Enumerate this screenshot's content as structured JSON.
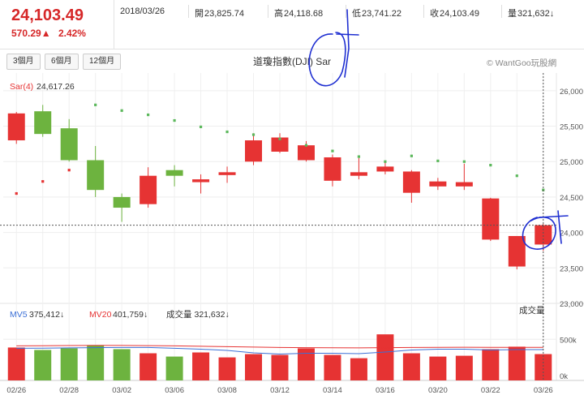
{
  "quote": {
    "price": "24,103.49",
    "change": "570.29",
    "change_arrow": "▲",
    "change_pct": "2.42%",
    "date": "2018/03/26",
    "open_label": "開",
    "open": "23,825.74",
    "high_label": "高",
    "high": "24,118.68",
    "low_label": "低",
    "low": "23,741.22",
    "close_label": "收",
    "close": "24,103.49",
    "volume_label": "量",
    "volume": "321,632",
    "volume_arrow": "↓"
  },
  "range_buttons": [
    "3個月",
    "6個月",
    "12個月"
  ],
  "title": "道瓊指數(DJI) Sar",
  "watermark": "© WantGoo玩股網",
  "sar_legend": {
    "label": "Sar(4)",
    "value": "24,617.26"
  },
  "volume_legend": {
    "mv5_label": "MV5",
    "mv5_value": "375,412",
    "mv5_arrow": "↓",
    "mv20_label": "MV20",
    "mv20_value": "401,759",
    "mv20_arrow": "↓",
    "vol_label": "成交量",
    "vol_value": "321,632",
    "vol_arrow": "↓"
  },
  "volume_axis_title": "成交量",
  "colors": {
    "up": "#e63333",
    "down": "#6db33f",
    "sar_up": "#e63333",
    "sar_down": "#5cb85c",
    "mv5": "#3b6fd6",
    "mv20": "#e63333",
    "annotation": "#1f2fd1"
  },
  "chart_data": [
    {
      "type": "candlestick",
      "title": "道瓊指數(DJI) Sar",
      "ylim": [
        23000,
        26250
      ],
      "yticks": [
        23000,
        23500,
        24000,
        24500,
        25000,
        25500,
        26000
      ],
      "ytick_labels": [
        "23,000",
        "23,500",
        "24,000",
        "24,500",
        "25,000",
        "25,500",
        "26,000"
      ],
      "last_close": 24103,
      "candles": [
        {
          "o": 25300,
          "h": 25700,
          "l": 25250,
          "c": 25680,
          "sar": 24550
        },
        {
          "o": 25710,
          "h": 25800,
          "l": 25350,
          "c": 25390,
          "sar": 24720
        },
        {
          "o": 25470,
          "h": 25600,
          "l": 25000,
          "c": 25020,
          "sar": 24880
        },
        {
          "o": 25020,
          "h": 25220,
          "l": 24500,
          "c": 24600,
          "sar": 25800
        },
        {
          "o": 24500,
          "h": 24550,
          "l": 24150,
          "c": 24350,
          "sar": 25720
        },
        {
          "o": 24400,
          "h": 24920,
          "l": 24350,
          "c": 24800,
          "sar": 25660
        },
        {
          "o": 24880,
          "h": 24950,
          "l": 24650,
          "c": 24800,
          "sar": 25580
        },
        {
          "o": 24710,
          "h": 24820,
          "l": 24550,
          "c": 24750,
          "sar": 25490
        },
        {
          "o": 24810,
          "h": 24930,
          "l": 24700,
          "c": 24850,
          "sar": 25420
        },
        {
          "o": 25000,
          "h": 25400,
          "l": 24950,
          "c": 25300,
          "sar": 25380
        },
        {
          "o": 25140,
          "h": 25400,
          "l": 25120,
          "c": 25340,
          "sar": 25320
        },
        {
          "o": 25020,
          "h": 25290,
          "l": 25000,
          "c": 25230,
          "sar": 25230
        },
        {
          "o": 24730,
          "h": 25100,
          "l": 24650,
          "c": 25060,
          "sar": 25150
        },
        {
          "o": 24800,
          "h": 25050,
          "l": 24750,
          "c": 24850,
          "sar": 25070
        },
        {
          "o": 24860,
          "h": 24990,
          "l": 24820,
          "c": 24930,
          "sar": 25000
        },
        {
          "o": 24560,
          "h": 24880,
          "l": 24420,
          "c": 24860,
          "sar": 25080
        },
        {
          "o": 24650,
          "h": 24770,
          "l": 24600,
          "c": 24720,
          "sar": 25010
        },
        {
          "o": 24650,
          "h": 24970,
          "l": 24600,
          "c": 24710,
          "sar": 25000
        },
        {
          "o": 23900,
          "h": 24490,
          "l": 23880,
          "c": 24480,
          "sar": 24950
        },
        {
          "o": 23520,
          "h": 23950,
          "l": 23480,
          "c": 23950,
          "sar": 24800
        },
        {
          "o": 23830,
          "h": 24120,
          "l": 23740,
          "c": 24103,
          "sar": 24600
        }
      ]
    },
    {
      "type": "bar",
      "title": "成交量",
      "ylim": [
        0,
        700
      ],
      "yticks": [
        0,
        500
      ],
      "ytick_labels": [
        "0k",
        "500k"
      ],
      "x_labels": [
        {
          "index": 0,
          "label": "02/26"
        },
        {
          "index": 2,
          "label": "02/28"
        },
        {
          "index": 4,
          "label": "03/02"
        },
        {
          "index": 6,
          "label": "03/06"
        },
        {
          "index": 8,
          "label": "03/08"
        },
        {
          "index": 10,
          "label": "03/12"
        },
        {
          "index": 12,
          "label": "03/14"
        },
        {
          "index": 14,
          "label": "03/16"
        },
        {
          "index": 16,
          "label": "03/20"
        },
        {
          "index": 18,
          "label": "03/22"
        },
        {
          "index": 20,
          "label": "03/26"
        }
      ],
      "values": [
        400,
        370,
        390,
        430,
        380,
        330,
        290,
        340,
        280,
        320,
        310,
        390,
        310,
        270,
        560,
        330,
        290,
        300,
        380,
        410,
        320
      ],
      "series": [
        {
          "name": "MV5",
          "values": [
            390,
            392,
            395,
            398,
            400,
            400,
            390,
            380,
            365,
            335,
            320,
            330,
            330,
            325,
            345,
            370,
            380,
            380,
            370,
            375,
            375
          ]
        },
        {
          "name": "MV20",
          "values": [
            420,
            422,
            424,
            425,
            425,
            423,
            420,
            415,
            410,
            405,
            400,
            398,
            396,
            395,
            398,
            400,
            402,
            403,
            402,
            402,
            402
          ]
        }
      ]
    }
  ]
}
